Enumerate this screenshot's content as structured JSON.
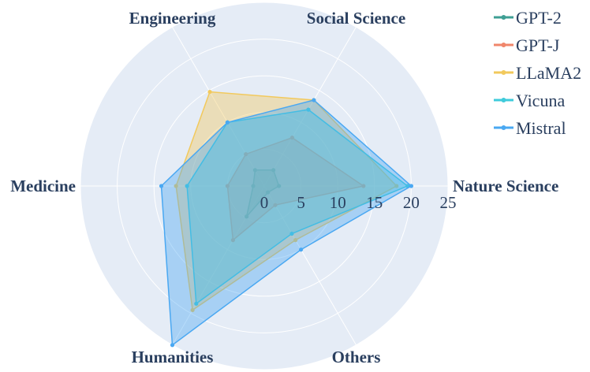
{
  "chart_data": {
    "type": "radar",
    "axes": [
      "Nature Science",
      "Social Science",
      "Engineering",
      "Medicine",
      "Humanities",
      "Others"
    ],
    "radial_ticks": [
      "0",
      "5",
      "10",
      "15",
      "20",
      "25"
    ],
    "radial_range": [
      0,
      25
    ],
    "grid": true,
    "legend_position": "top-right",
    "series": [
      {
        "name": "GPT-2",
        "color": "#3f9f94",
        "values": [
          2.0,
          2.5,
          2.5,
          1.5,
          4.8,
          1.0
        ]
      },
      {
        "name": "GPT-J",
        "color": "#f0866b",
        "values": [
          13.5,
          7.6,
          5.0,
          5.0,
          8.5,
          3.0
        ]
      },
      {
        "name": "LLaMA2",
        "color": "#f2c95c",
        "values": [
          18.0,
          13.5,
          14.8,
          12.0,
          19.5,
          8.5
        ]
      },
      {
        "name": "Vicuna",
        "color": "#3fcbdb",
        "values": [
          19.5,
          12.0,
          10.0,
          10.5,
          18.5,
          7.5
        ]
      },
      {
        "name": "Mistral",
        "color": "#4aa8f2",
        "values": [
          20.0,
          13.5,
          10.0,
          14.0,
          25.0,
          10.0
        ]
      }
    ]
  }
}
